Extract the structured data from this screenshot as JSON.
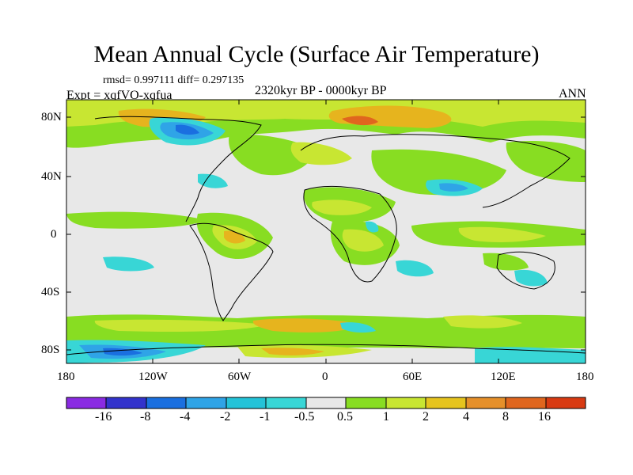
{
  "title": "Mean Annual Cycle (Surface Air Temperature)",
  "stats": "rmsd= 0.997111 diff= 0.297135",
  "experiment": "Expt = xqfVO-xqfua",
  "period": "2320kyr BP - 0000kyr BP",
  "season": "ANN",
  "lat_ticks": [
    "80N",
    "40N",
    "0",
    "40S",
    "80S"
  ],
  "lon_ticks": [
    "180",
    "120W",
    "60W",
    "0",
    "60E",
    "120E",
    "180"
  ],
  "colorbar": {
    "labels": [
      "-16",
      "-8",
      "-4",
      "-2",
      "-1",
      "-0.5",
      "0.5",
      "1",
      "2",
      "4",
      "8",
      "16"
    ],
    "colors": [
      "#8a2be2",
      "#3333cc",
      "#1a6fe0",
      "#2fa4e7",
      "#24c3d8",
      "#38d6d6",
      "#e8e8e8",
      "#88dd22",
      "#c8e632",
      "#e6c41e",
      "#e6902a",
      "#e0661e",
      "#d83a12"
    ]
  },
  "map_colors": {
    "neutral": "#e8e8e8",
    "green": "#88dd22",
    "yellow": "#c8e632",
    "orange": "#e6b41e",
    "dark_orange": "#e0661e",
    "cyan": "#38d6d6",
    "blue": "#2fa4e7",
    "deep_blue": "#1a6fe0"
  }
}
